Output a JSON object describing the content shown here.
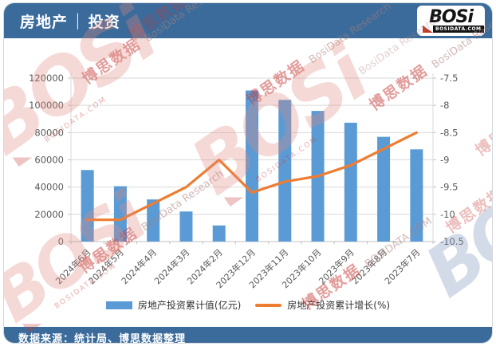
{
  "header": {
    "title_left": "房地产",
    "separator": "|",
    "title_right": "投资",
    "logo": {
      "main": "BOSi",
      "sub": "BOSIDATA.COM"
    }
  },
  "watermark": {
    "logo_text": "BOSi",
    "cn_text": "博思数据",
    "en_text": "BosiData Research",
    "url_text": "BOSIDATA.COM"
  },
  "chart_data": {
    "type": "bar",
    "title": "房地产 | 投资",
    "categories": [
      "2024年6月",
      "2024年5月",
      "2024年4月",
      "2024年3月",
      "2024年2月",
      "2023年12月",
      "2023年11月",
      "2023年10月",
      "2023年9月",
      "2023年8月",
      "2023年7月"
    ],
    "series": [
      {
        "name": "房地产投资累计值(亿元)",
        "type": "bar",
        "axis": "left",
        "color": "#5B9BD5",
        "values": [
          52529,
          40632,
          30928,
          22082,
          11842,
          110913,
          104045,
          95922,
          87269,
          76900,
          67717
        ]
      },
      {
        "name": "房地产投资累计增长(%)",
        "type": "line",
        "axis": "right",
        "color": "#ED7D31",
        "values": [
          -10.1,
          -10.1,
          -9.8,
          -9.5,
          -9.0,
          -9.6,
          -9.4,
          -9.3,
          -9.1,
          -8.8,
          -8.5
        ]
      }
    ],
    "left_axis": {
      "min": 0,
      "max": 120000,
      "step": 20000,
      "labels": [
        "0",
        "20000",
        "40000",
        "60000",
        "80000",
        "100000",
        "120000"
      ]
    },
    "right_axis": {
      "min": -10.5,
      "max": -7.5,
      "step": 0.5,
      "labels": [
        "-10.5",
        "-10",
        "-9.5",
        "-9",
        "-8.5",
        "-8",
        "-7.5"
      ]
    },
    "grid": true,
    "legend_position": "bottom",
    "xlabel": "",
    "ylabel": ""
  },
  "footer": {
    "source_text": "数据来源：统计局、博思数据整理"
  },
  "colors": {
    "header_bg": "#3A6B9B",
    "bar": "#5B9BD5",
    "line": "#ED7D31",
    "grid": "#D9D9D9",
    "axis_text": "#595959"
  }
}
